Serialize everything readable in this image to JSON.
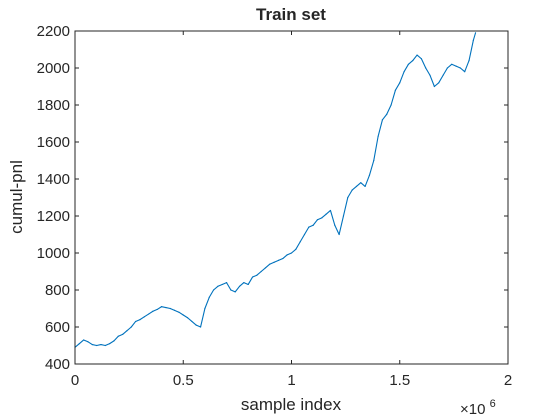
{
  "chart_data": {
    "type": "line",
    "title": "Train set",
    "xlabel": "sample index",
    "ylabel": "cumul-pnl",
    "x_exponent_label": "×10",
    "x_exponent_power": "6",
    "xlim": [
      0,
      2
    ],
    "ylim": [
      400,
      2200
    ],
    "x_ticks": [
      "0",
      "0.5",
      "1",
      "1.5",
      "2"
    ],
    "y_ticks": [
      "400",
      "600",
      "800",
      "1000",
      "1200",
      "1400",
      "1600",
      "1800",
      "2000",
      "2200"
    ],
    "grid": false,
    "line_color": "#0072BD",
    "series": [
      {
        "x": [
          0,
          0.02,
          0.04,
          0.06,
          0.08,
          0.1,
          0.12,
          0.14,
          0.16,
          0.18,
          0.2,
          0.22,
          0.24,
          0.26,
          0.28,
          0.3,
          0.32,
          0.34,
          0.36,
          0.38,
          0.4,
          0.42,
          0.44,
          0.46,
          0.48,
          0.5,
          0.52,
          0.54,
          0.56,
          0.58,
          0.6,
          0.62,
          0.64,
          0.66,
          0.68,
          0.7,
          0.72,
          0.74,
          0.76,
          0.78,
          0.8,
          0.82,
          0.84,
          0.86,
          0.88,
          0.9,
          0.92,
          0.94,
          0.96,
          0.98,
          1.0,
          1.02,
          1.04,
          1.06,
          1.08,
          1.1,
          1.12,
          1.14,
          1.16,
          1.18,
          1.2,
          1.22,
          1.24,
          1.26,
          1.28,
          1.3,
          1.32,
          1.34,
          1.36,
          1.38,
          1.4,
          1.42,
          1.44,
          1.46,
          1.48,
          1.5,
          1.52,
          1.54,
          1.56,
          1.58,
          1.6,
          1.62,
          1.64,
          1.66,
          1.68,
          1.7,
          1.72,
          1.74,
          1.76,
          1.78,
          1.8,
          1.82,
          1.84,
          1.85
        ],
        "y": [
          490,
          510,
          530,
          520,
          505,
          500,
          505,
          500,
          510,
          525,
          550,
          560,
          580,
          600,
          630,
          640,
          655,
          670,
          685,
          695,
          710,
          705,
          700,
          690,
          680,
          665,
          650,
          630,
          610,
          600,
          700,
          760,
          800,
          820,
          830,
          840,
          800,
          790,
          820,
          840,
          830,
          870,
          880,
          900,
          920,
          940,
          950,
          960,
          970,
          990,
          1000,
          1020,
          1060,
          1100,
          1140,
          1150,
          1180,
          1190,
          1210,
          1230,
          1150,
          1100,
          1200,
          1300,
          1340,
          1360,
          1380,
          1360,
          1420,
          1500,
          1630,
          1720,
          1750,
          1800,
          1880,
          1920,
          1980,
          2020,
          2040,
          2070,
          2050,
          2000,
          1960,
          1900,
          1920,
          1960,
          2000,
          2020,
          2010,
          2000,
          1980,
          2040,
          2150,
          2190
        ]
      }
    ]
  }
}
